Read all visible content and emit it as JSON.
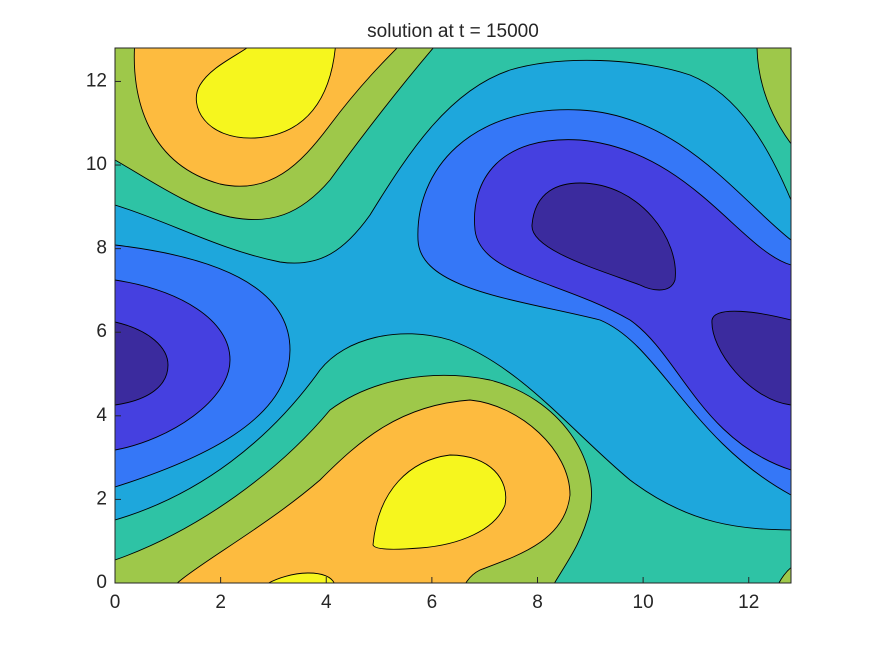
{
  "chart_data": {
    "type": "contour",
    "title": "solution at t = 15000",
    "xlim": [
      0,
      12.8
    ],
    "ylim": [
      0,
      12.8
    ],
    "xticks": [
      0,
      2,
      4,
      6,
      8,
      10,
      12
    ],
    "yticks": [
      0,
      2,
      4,
      6,
      8,
      10,
      12
    ],
    "level_colors": [
      "#3b2b9e",
      "#4540e0",
      "#3577f7",
      "#1ea7dc",
      "#2ec3a5",
      "#9ec84a",
      "#fdbb3f",
      "#f6f61e"
    ]
  }
}
